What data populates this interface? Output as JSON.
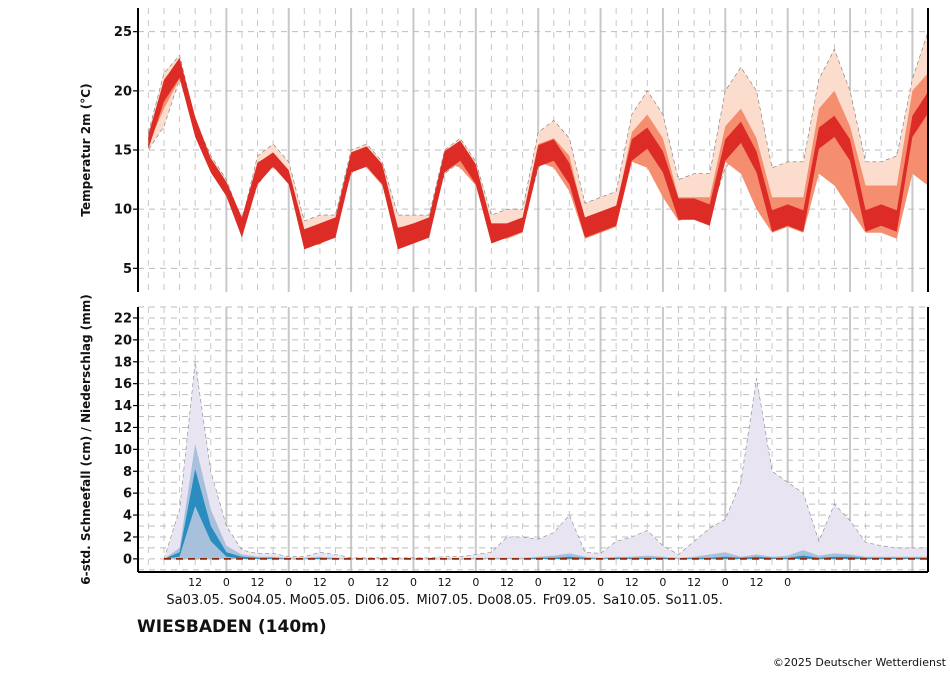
{
  "station": "WIESBADEN (140m)",
  "copyright": "©2025 Deutscher Wetterdienst",
  "colors": {
    "temp_outer": "#fbdccd",
    "temp_mid": "#f58e6e",
    "temp_inner": "#dd2b26",
    "precip_outer": "#e8e4f2",
    "precip_mid": "#a7c1dd",
    "precip_inner": "#2a8cbf",
    "snow_line": "#8b2a0a"
  },
  "chart_data": [
    {
      "type": "area",
      "ylabel": "Temperatur 2m (°C)",
      "ylim": [
        3,
        27
      ],
      "yticks": [
        5,
        10,
        15,
        20,
        25
      ],
      "grid": true,
      "x_unit": "hours since Sa03.05. 00 UTC",
      "x": [
        -6,
        0,
        6,
        12,
        18,
        24,
        30,
        36,
        42,
        48,
        54,
        60,
        66,
        72,
        78,
        84,
        90,
        96,
        102,
        108,
        114,
        120,
        126,
        132,
        138,
        144,
        150,
        156,
        162,
        168,
        174,
        180,
        186,
        192,
        198,
        204,
        210,
        216,
        222,
        228,
        234,
        240,
        246,
        252,
        258,
        264,
        270,
        276,
        282,
        288,
        294
      ],
      "series": [
        {
          "name": "q10",
          "values": [
            15,
            17,
            21,
            17,
            14,
            12,
            8.5,
            12,
            14,
            12.5,
            8,
            8,
            8.5,
            13,
            14,
            12,
            8,
            8,
            8.5,
            13,
            14,
            12.5,
            8,
            8,
            8.5,
            13.5,
            14.5,
            12,
            8,
            8,
            9,
            14,
            15,
            13,
            10,
            10,
            9.5,
            13.5,
            15,
            13,
            9,
            9,
            9,
            13,
            15,
            13,
            9,
            9,
            9,
            14,
            16
          ]
        },
        {
          "name": "q25",
          "values": [
            15.5,
            18.5,
            21,
            17,
            14,
            12,
            8.5,
            13,
            13.5,
            12.5,
            7,
            7,
            8,
            14,
            13.5,
            12,
            7.5,
            7.5,
            8,
            14,
            13.5,
            12,
            7.5,
            7.5,
            8,
            14,
            13.5,
            11.5,
            7.5,
            8,
            8.5,
            14,
            13.5,
            11,
            9,
            9.5,
            9,
            14,
            13,
            10,
            8,
            8.5,
            8,
            13,
            12,
            10,
            8,
            8,
            7.5,
            13,
            12
          ]
        },
        {
          "name": "q50",
          "values": [
            16,
            20,
            22,
            17,
            14,
            12,
            8.5,
            13,
            14.5,
            13,
            7.5,
            8,
            8.5,
            14,
            14.5,
            13,
            7.5,
            8,
            8.5,
            14,
            15,
            13,
            8,
            8.5,
            9,
            14.5,
            15,
            13,
            8.5,
            9,
            9.5,
            15,
            16,
            14,
            10,
            10,
            9.5,
            15,
            16.5,
            14,
            9,
            9.5,
            9,
            16,
            17,
            15,
            9,
            9.5,
            9,
            17,
            19
          ]
        },
        {
          "name": "q75",
          "values": [
            16,
            21,
            22.5,
            17.5,
            14,
            12,
            9,
            14,
            14.5,
            13,
            8,
            8.5,
            9,
            14.5,
            15,
            13.5,
            8.5,
            8.5,
            9,
            15,
            15.5,
            13.5,
            8.5,
            8.5,
            9,
            15.5,
            16,
            14.5,
            9,
            9.5,
            10,
            16.5,
            18,
            16,
            11,
            11,
            11,
            17,
            18.5,
            16,
            11,
            11,
            11,
            18.5,
            20,
            17,
            12,
            12,
            12,
            20,
            21.5
          ]
        },
        {
          "name": "q90",
          "values": [
            16.5,
            21.5,
            23,
            17.5,
            14.5,
            12.5,
            9,
            14.5,
            15.5,
            14,
            9,
            9.5,
            9.5,
            15,
            15.5,
            14,
            9.5,
            9.5,
            9.5,
            15,
            16,
            14,
            9.5,
            10,
            10,
            16.5,
            17.5,
            16,
            10.5,
            11,
            11.5,
            18,
            20,
            18,
            12.5,
            13,
            13,
            20,
            22,
            20,
            13.5,
            14,
            14,
            21,
            23.5,
            20,
            14,
            14,
            14.5,
            21,
            25
          ]
        }
      ]
    },
    {
      "type": "area",
      "ylabel": "6-std. Schneefall (cm) / Niederschlag (mm)",
      "ylim": [
        -1.2,
        23
      ],
      "yticks": [
        0,
        2,
        4,
        6,
        8,
        10,
        12,
        14,
        16,
        18,
        20,
        22
      ],
      "grid": true,
      "x": [
        0,
        6,
        12,
        18,
        24,
        30,
        36,
        42,
        48,
        54,
        60,
        66,
        72,
        78,
        84,
        90,
        96,
        102,
        108,
        114,
        120,
        126,
        132,
        138,
        144,
        150,
        156,
        162,
        168,
        174,
        180,
        186,
        192,
        198,
        204,
        210,
        216,
        222,
        228,
        234,
        240,
        246,
        252,
        258,
        264,
        270,
        276,
        282,
        288,
        294
      ],
      "series": [
        {
          "name": "precip_q90",
          "values": [
            0,
            4.5,
            18,
            8,
            3,
            0.8,
            0.5,
            0.5,
            0.2,
            0.2,
            0.6,
            0.4,
            0.1,
            0.1,
            0.1,
            0.1,
            0.1,
            0.1,
            0.2,
            0.2,
            0.4,
            0.6,
            2,
            2,
            1.8,
            2.4,
            4,
            0.6,
            0.5,
            1.6,
            2,
            2.6,
            1.2,
            0.4,
            1.6,
            2.8,
            3.6,
            7,
            16.5,
            8,
            7,
            6,
            1.6,
            5,
            3.5,
            1.5,
            1.2,
            1,
            1,
            1
          ]
        },
        {
          "name": "precip_q75",
          "values": [
            0,
            1,
            10.5,
            4.5,
            1.2,
            0.4,
            0.2,
            0.2,
            0.1,
            0.1,
            0.2,
            0.1,
            0,
            0,
            0,
            0,
            0,
            0,
            0,
            0,
            0.1,
            0.1,
            0.1,
            0.1,
            0.2,
            0.3,
            0.5,
            0.2,
            0.1,
            0.2,
            0.2,
            0.3,
            0.2,
            0.1,
            0.2,
            0.4,
            0.6,
            0.2,
            0.4,
            0.2,
            0.3,
            0.8,
            0.3,
            0.5,
            0.4,
            0.2,
            0.2,
            0.2,
            0.2,
            0.2
          ]
        },
        {
          "name": "precip_q50",
          "values": [
            0,
            0.6,
            8.2,
            3,
            0.6,
            0.2,
            0.1,
            0.1,
            0,
            0,
            0.1,
            0,
            0,
            0,
            0,
            0,
            0,
            0,
            0,
            0,
            0,
            0,
            0,
            0,
            0.1,
            0.1,
            0.2,
            0.1,
            0,
            0.1,
            0.1,
            0.1,
            0.1,
            0,
            0.1,
            0.1,
            0.2,
            0.1,
            0.2,
            0.1,
            0.1,
            0.3,
            0.1,
            0.2,
            0.2,
            0.1,
            0.1,
            0.1,
            0.1,
            0.1
          ]
        },
        {
          "name": "precip_q25",
          "values": [
            0,
            0.2,
            4.8,
            1.6,
            0.2,
            0,
            0,
            0,
            0,
            0,
            0,
            0,
            0,
            0,
            0,
            0,
            0,
            0,
            0,
            0,
            0,
            0,
            0,
            0,
            0,
            0,
            0,
            0,
            0,
            0,
            0,
            0,
            0,
            0,
            0,
            0,
            0,
            0,
            0,
            0,
            0,
            0,
            0,
            0,
            0,
            0,
            0,
            0,
            0,
            0
          ]
        },
        {
          "name": "precip_q10",
          "values": [
            0,
            0.1,
            1.5,
            0.4,
            0.1,
            0,
            0,
            0,
            0,
            0,
            0,
            0,
            0,
            0,
            0,
            0,
            0,
            0,
            0,
            0,
            0,
            0,
            0,
            0,
            0,
            0,
            0,
            0,
            0,
            0,
            0,
            0,
            0,
            0,
            0,
            0,
            0,
            0,
            0,
            0,
            0,
            0,
            0,
            0,
            0,
            0,
            0,
            0,
            0,
            0
          ]
        },
        {
          "name": "snow",
          "values": [
            0,
            0,
            0,
            0,
            0,
            0,
            0,
            0,
            0,
            0,
            0,
            0,
            0,
            0,
            0,
            0,
            0,
            0,
            0,
            0,
            0,
            0,
            0,
            0,
            0,
            0,
            0,
            0,
            0,
            0,
            0,
            0,
            0,
            0,
            0,
            0,
            0,
            0,
            0,
            0,
            0,
            0,
            0,
            0,
            0,
            0,
            0,
            0,
            0,
            0
          ]
        }
      ]
    }
  ],
  "x_axis": {
    "hour_ticks": [
      {
        "h": 12,
        "label": "12"
      },
      {
        "h": 24,
        "label": "0"
      },
      {
        "h": 36,
        "label": "12"
      },
      {
        "h": 48,
        "label": "0"
      },
      {
        "h": 60,
        "label": "12"
      },
      {
        "h": 72,
        "label": "0"
      },
      {
        "h": 84,
        "label": "12"
      },
      {
        "h": 96,
        "label": "0"
      },
      {
        "h": 108,
        "label": "12"
      },
      {
        "h": 120,
        "label": "0"
      },
      {
        "h": 132,
        "label": "12"
      },
      {
        "h": 144,
        "label": "0"
      },
      {
        "h": 156,
        "label": "12"
      },
      {
        "h": 168,
        "label": "0"
      },
      {
        "h": 180,
        "label": "12"
      },
      {
        "h": 192,
        "label": "0"
      },
      {
        "h": 204,
        "label": "12"
      },
      {
        "h": 216,
        "label": "0"
      },
      {
        "h": 228,
        "label": "12"
      },
      {
        "h": 240,
        "label": "0"
      }
    ],
    "days": [
      {
        "h": 12,
        "label": "Sa03.05."
      },
      {
        "h": 36,
        "label": "So04.05."
      },
      {
        "h": 60,
        "label": "Mo05.05."
      },
      {
        "h": 84,
        "label": "Di06.05."
      },
      {
        "h": 108,
        "label": "Mi07.05."
      },
      {
        "h": 132,
        "label": "Do08.05."
      },
      {
        "h": 156,
        "label": "Fr09.05."
      },
      {
        "h": 180,
        "label": "Sa10.05."
      },
      {
        "h": 204,
        "label": "So11.05."
      }
    ]
  }
}
